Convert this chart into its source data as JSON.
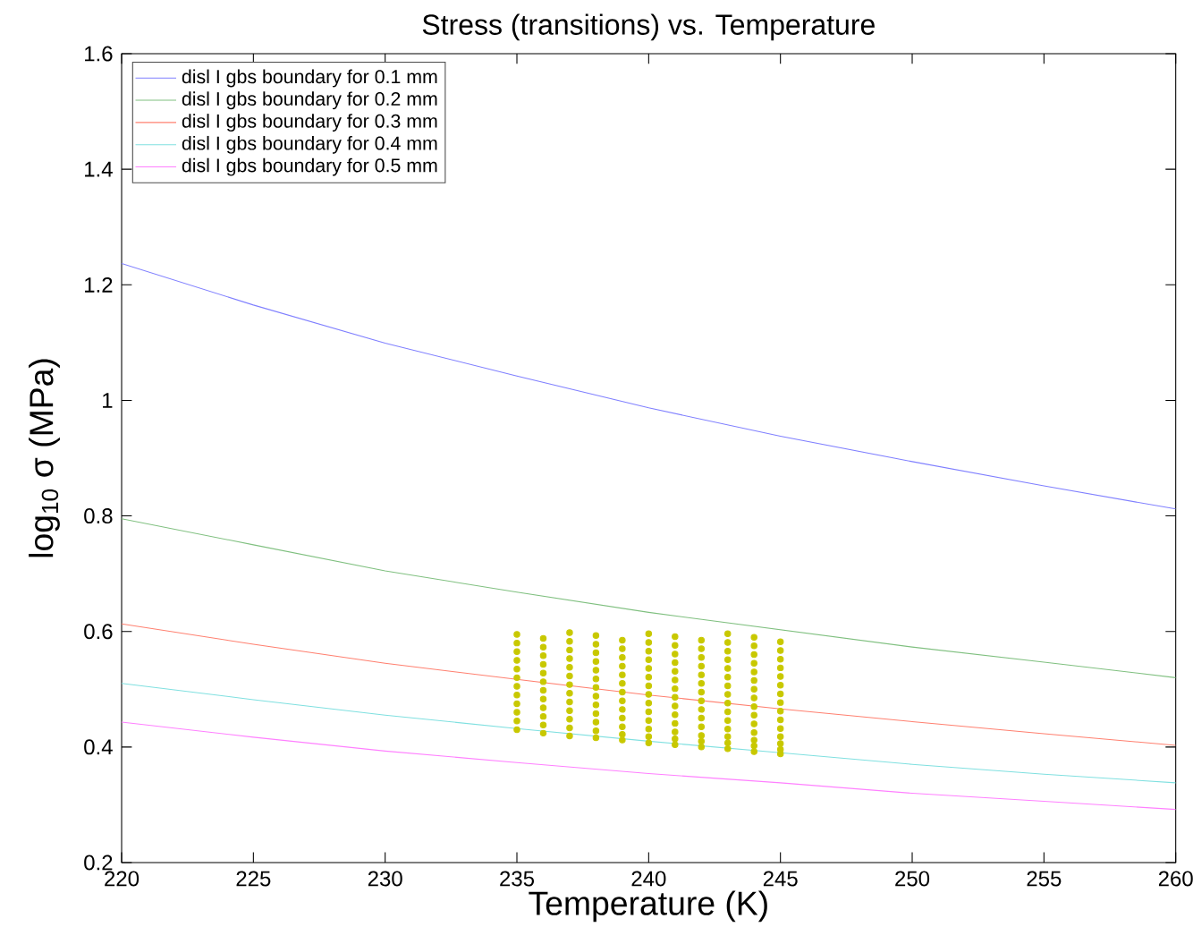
{
  "chart_data": {
    "type": "line",
    "title": "Stress (transitions) vs. Temperature",
    "xlabel": "Temperature (K)",
    "ylabel": "log$_{10}$ σ (MPa)",
    "x": [
      220,
      225,
      230,
      235,
      240,
      245,
      250,
      255,
      260
    ],
    "xlim": [
      220,
      260
    ],
    "ylim": [
      0.2,
      1.6
    ],
    "xticks": [
      220,
      225,
      230,
      235,
      240,
      245,
      250,
      255,
      260
    ],
    "yticks": [
      0.2,
      0.4,
      0.6,
      0.8,
      1,
      1.2,
      1.4,
      1.6
    ],
    "grid": false,
    "legend": "top left",
    "line_style": "solid",
    "series": [
      {
        "name": "disl I gbs boundary for 0.1 mm",
        "color": "#8080ff",
        "values": [
          1.237,
          1.165,
          1.099,
          1.042,
          0.987,
          0.938,
          0.894,
          0.852,
          0.812
        ]
      },
      {
        "name": "disl I gbs boundary for 0.2 mm",
        "color": "#80c080",
        "values": [
          0.795,
          0.75,
          0.705,
          0.668,
          0.633,
          0.603,
          0.573,
          0.547,
          0.52
        ]
      },
      {
        "name": "disl I gbs boundary for 0.3 mm",
        "color": "#ff8070",
        "values": [
          0.613,
          0.578,
          0.545,
          0.517,
          0.49,
          0.466,
          0.444,
          0.423,
          0.403
        ]
      },
      {
        "name": "disl I gbs boundary for 0.4 mm",
        "color": "#80e0e0",
        "values": [
          0.51,
          0.482,
          0.455,
          0.432,
          0.41,
          0.39,
          0.37,
          0.353,
          0.338
        ]
      },
      {
        "name": "disl I gbs boundary for 0.5 mm",
        "color": "#ff80ff",
        "values": [
          0.443,
          0.417,
          0.393,
          0.373,
          0.354,
          0.338,
          0.32,
          0.306,
          0.292
        ]
      },
      {
        "type": "scatter",
        "marker": "circle",
        "color": "#c8c800",
        "x": [
          235,
          235,
          235,
          235,
          235,
          235,
          235,
          235,
          235,
          235,
          235,
          235,
          236,
          236,
          236,
          236,
          236,
          236,
          236,
          236,
          236,
          236,
          236,
          236,
          237,
          237,
          237,
          237,
          237,
          237,
          237,
          237,
          237,
          237,
          237,
          237,
          237,
          238,
          238,
          238,
          238,
          238,
          238,
          238,
          238,
          238,
          238,
          238,
          238,
          238,
          239,
          239,
          239,
          239,
          239,
          239,
          239,
          239,
          239,
          239,
          239,
          239,
          239,
          240,
          240,
          240,
          240,
          240,
          240,
          240,
          240,
          240,
          240,
          240,
          240,
          240,
          240,
          241,
          241,
          241,
          241,
          241,
          241,
          241,
          241,
          241,
          241,
          241,
          241,
          241,
          241,
          242,
          242,
          242,
          242,
          242,
          242,
          242,
          242,
          242,
          242,
          242,
          242,
          242,
          242,
          243,
          243,
          243,
          243,
          243,
          243,
          243,
          243,
          243,
          243,
          243,
          243,
          243,
          243,
          243,
          244,
          244,
          244,
          244,
          244,
          244,
          244,
          244,
          244,
          244,
          244,
          244,
          244,
          244,
          244,
          245,
          245,
          245,
          245,
          245,
          245,
          245,
          245,
          245,
          245,
          245,
          245,
          245,
          245,
          245
        ],
        "values": [
          0.595,
          0.58,
          0.565,
          0.55,
          0.535,
          0.52,
          0.505,
          0.49,
          0.475,
          0.46,
          0.445,
          0.43,
          0.588,
          0.573,
          0.558,
          0.543,
          0.528,
          0.513,
          0.498,
          0.483,
          0.468,
          0.453,
          0.438,
          0.424,
          0.598,
          0.583,
          0.568,
          0.553,
          0.538,
          0.523,
          0.508,
          0.493,
          0.478,
          0.463,
          0.448,
          0.433,
          0.419,
          0.593,
          0.578,
          0.563,
          0.548,
          0.533,
          0.518,
          0.503,
          0.488,
          0.473,
          0.458,
          0.443,
          0.428,
          0.416,
          0.585,
          0.57,
          0.555,
          0.54,
          0.525,
          0.51,
          0.495,
          0.48,
          0.465,
          0.45,
          0.435,
          0.422,
          0.412,
          0.596,
          0.581,
          0.566,
          0.551,
          0.536,
          0.521,
          0.506,
          0.491,
          0.476,
          0.461,
          0.446,
          0.431,
          0.418,
          0.407,
          0.591,
          0.576,
          0.561,
          0.546,
          0.531,
          0.516,
          0.501,
          0.486,
          0.471,
          0.456,
          0.441,
          0.426,
          0.414,
          0.404,
          0.585,
          0.57,
          0.555,
          0.54,
          0.525,
          0.51,
          0.495,
          0.48,
          0.465,
          0.45,
          0.435,
          0.42,
          0.41,
          0.4,
          0.596,
          0.581,
          0.566,
          0.551,
          0.536,
          0.521,
          0.506,
          0.491,
          0.476,
          0.461,
          0.446,
          0.431,
          0.418,
          0.407,
          0.397,
          0.59,
          0.575,
          0.56,
          0.545,
          0.53,
          0.515,
          0.5,
          0.485,
          0.47,
          0.455,
          0.44,
          0.425,
          0.412,
          0.402,
          0.392,
          0.582,
          0.567,
          0.552,
          0.537,
          0.522,
          0.507,
          0.492,
          0.477,
          0.462,
          0.447,
          0.432,
          0.418,
          0.406,
          0.396,
          0.388
        ]
      }
    ]
  }
}
